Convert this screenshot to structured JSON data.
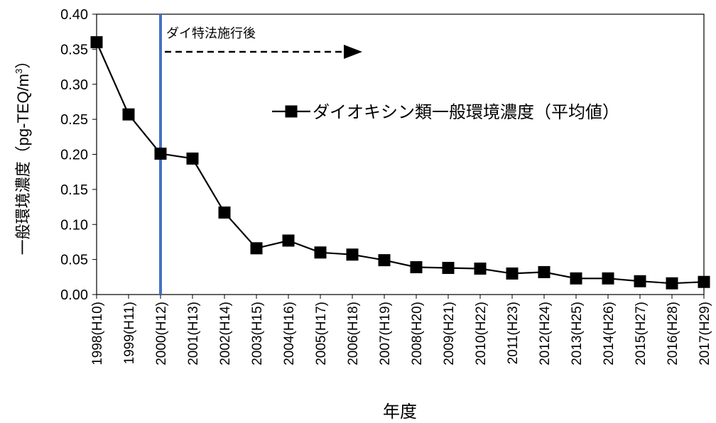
{
  "chart_data": {
    "type": "line",
    "title": "",
    "xlabel": "年度",
    "ylabel": "一般環境濃度（pg-TEQ/m³）",
    "ylabel_main": "一般環境濃度（pg-TEQ/m",
    "ylabel_sup": "3",
    "ylabel_close": "）",
    "ylim": [
      0.0,
      0.4
    ],
    "ytick_step": 0.05,
    "yticks": [
      "0.00",
      "0.05",
      "0.10",
      "0.15",
      "0.20",
      "0.25",
      "0.30",
      "0.35",
      "0.40"
    ],
    "categories": [
      "1998(H10)",
      "1999(H11)",
      "2000(H12)",
      "2001(H13)",
      "2002(H14)",
      "2003(H15)",
      "2004(H16)",
      "2005(H17)",
      "2006(H18)",
      "2007(H19)",
      "2008(H20)",
      "2009(H21)",
      "2010(H22)",
      "2011(H23)",
      "2012(H24)",
      "2013(H25)",
      "2014(H26)",
      "2015(H27)",
      "2016(H28)",
      "2017(H29)"
    ],
    "series": [
      {
        "name": "ダイオキシン類一般環境濃度（平均値）",
        "values": [
          0.36,
          0.257,
          0.201,
          0.194,
          0.117,
          0.066,
          0.077,
          0.06,
          0.057,
          0.049,
          0.039,
          0.038,
          0.037,
          0.03,
          0.032,
          0.023,
          0.023,
          0.019,
          0.016,
          0.018
        ],
        "color": "#000000",
        "marker": "square"
      }
    ],
    "legend_position": "top-right",
    "grid": false,
    "annotations": [
      {
        "text": "ダイ特法施行後",
        "category": "2000(H12)",
        "line_color": "#4472C4",
        "arrow": "dashed-right"
      }
    ]
  }
}
